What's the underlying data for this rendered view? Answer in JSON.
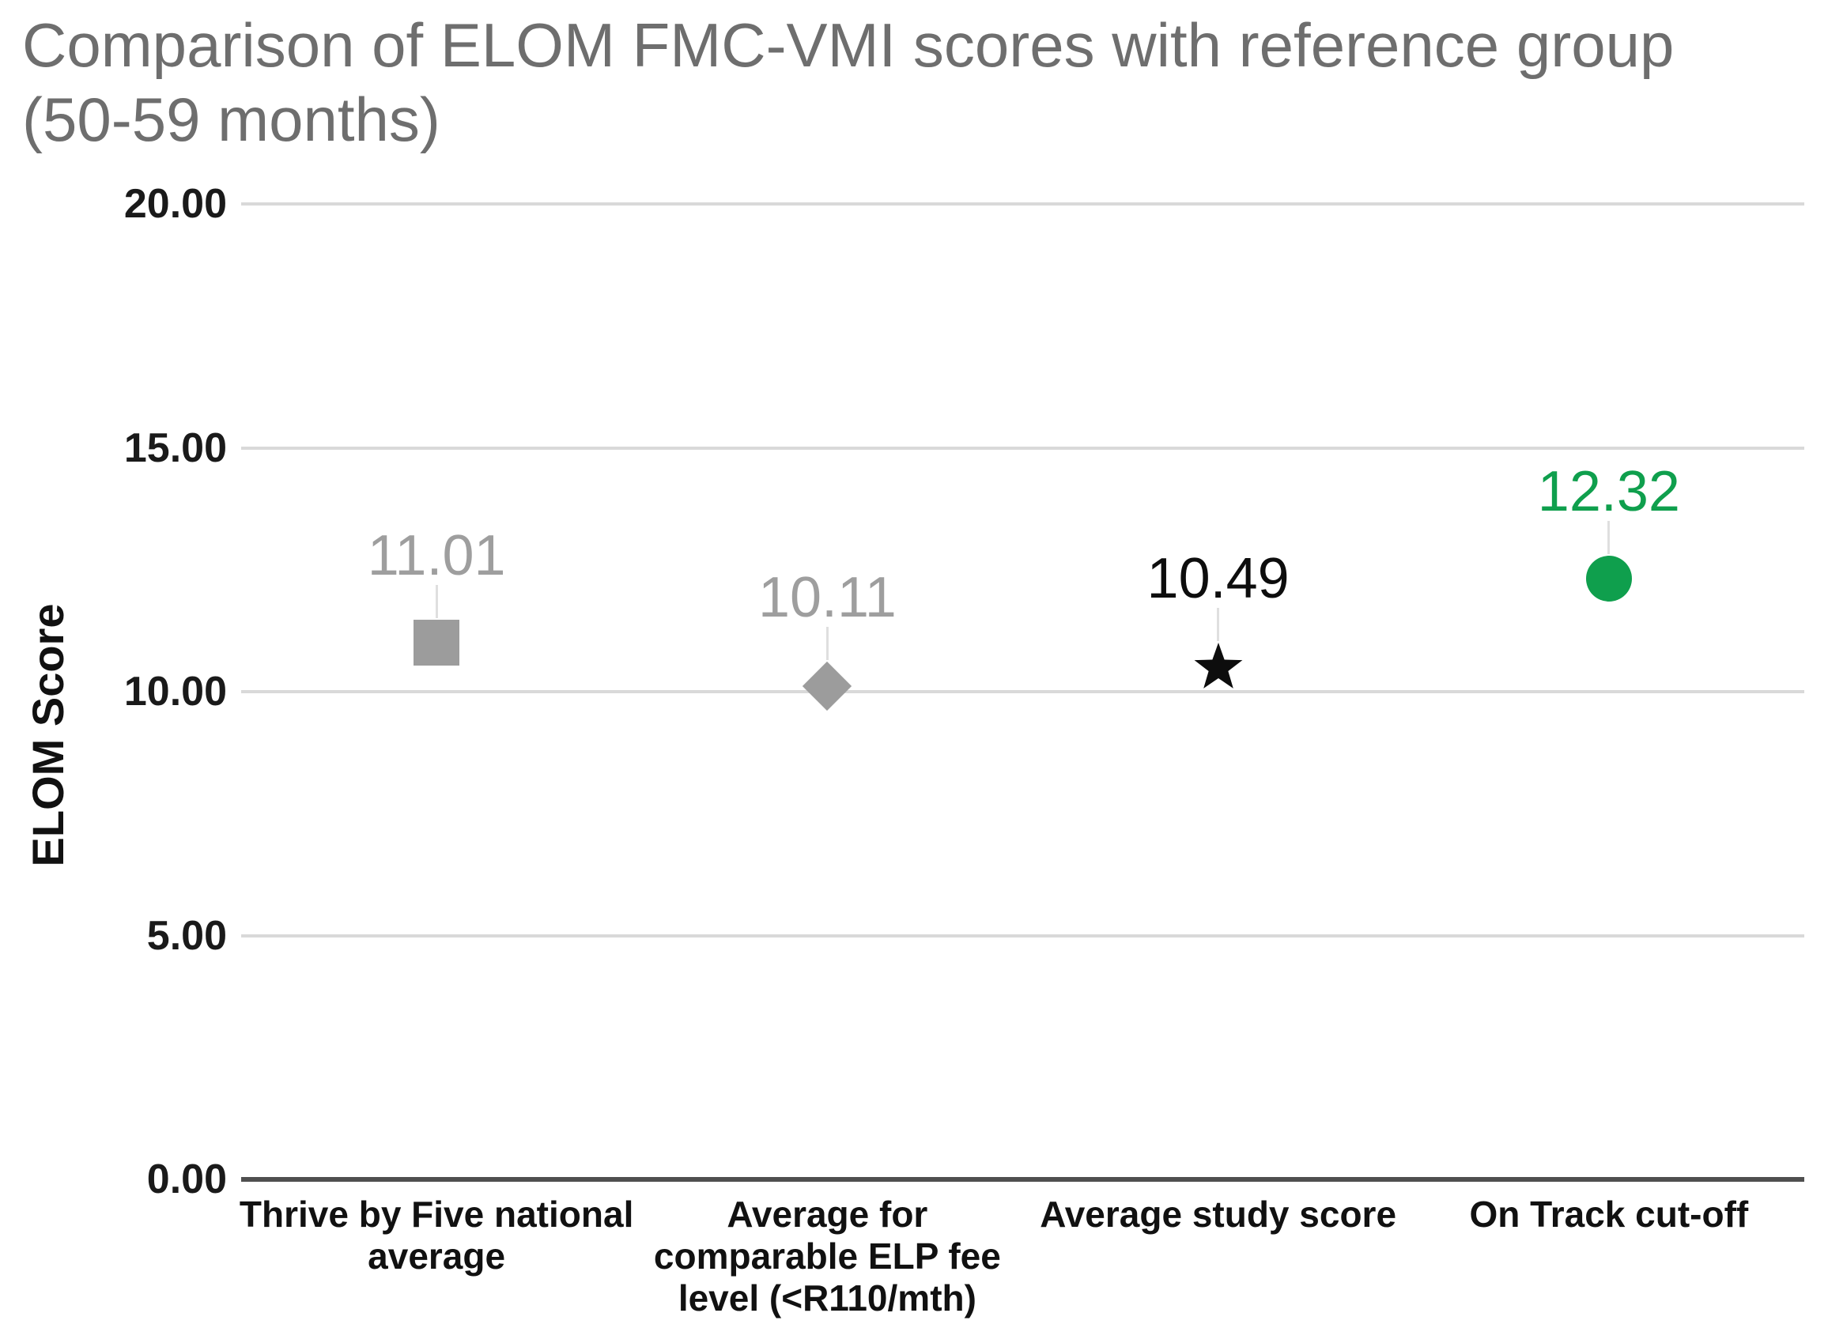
{
  "page": {
    "background": "#ffffff"
  },
  "title": {
    "text": "Comparison of ELOM FMC-VMI scores with reference group\n(50-59 months)",
    "color": "#6e6e6e"
  },
  "chart_data": {
    "type": "scatter",
    "title": "Comparison of ELOM FMC-VMI scores with reference group (50-59 months)",
    "xlabel": "",
    "ylabel": "ELOM Score",
    "ylim": [
      0,
      20
    ],
    "yticks": [
      20,
      15,
      10,
      5,
      0
    ],
    "ytick_labels": [
      "20.00",
      "15.00",
      "10.00",
      "5.00",
      "0.00"
    ],
    "grid": "horizontal-only",
    "legend": "none",
    "categories": [
      "Thrive by Five national\naverage",
      "Average for\ncomparable ELP fee\nlevel (<R110/mth)",
      "Average study score",
      "On Track cut-off"
    ],
    "points": [
      {
        "category": "Thrive by Five national average",
        "value": 11.01,
        "label": "11.01",
        "marker": "square",
        "color": "#9c9c9c",
        "label_color": "#9e9e9e"
      },
      {
        "category": "Average for comparable ELP fee level (<R110/mth)",
        "value": 10.11,
        "label": "10.11",
        "marker": "diamond",
        "color": "#9c9c9c",
        "label_color": "#9e9e9e"
      },
      {
        "category": "Average study score",
        "value": 10.49,
        "label": "10.49",
        "marker": "star",
        "color": "#0d0d0d",
        "label_color": "#0d0d0d"
      },
      {
        "category": "On Track cut-off",
        "value": 12.32,
        "label": "12.32",
        "marker": "circle",
        "color": "#0f9f4d",
        "label_color": "#0f9f4d"
      }
    ],
    "colors": {
      "gridline": "#d9d9d9",
      "axis_line": "#4f4f4f",
      "reference_gray": "#9c9c9c",
      "study_black": "#0d0d0d",
      "ontrack_green": "#0f9f4d"
    }
  }
}
